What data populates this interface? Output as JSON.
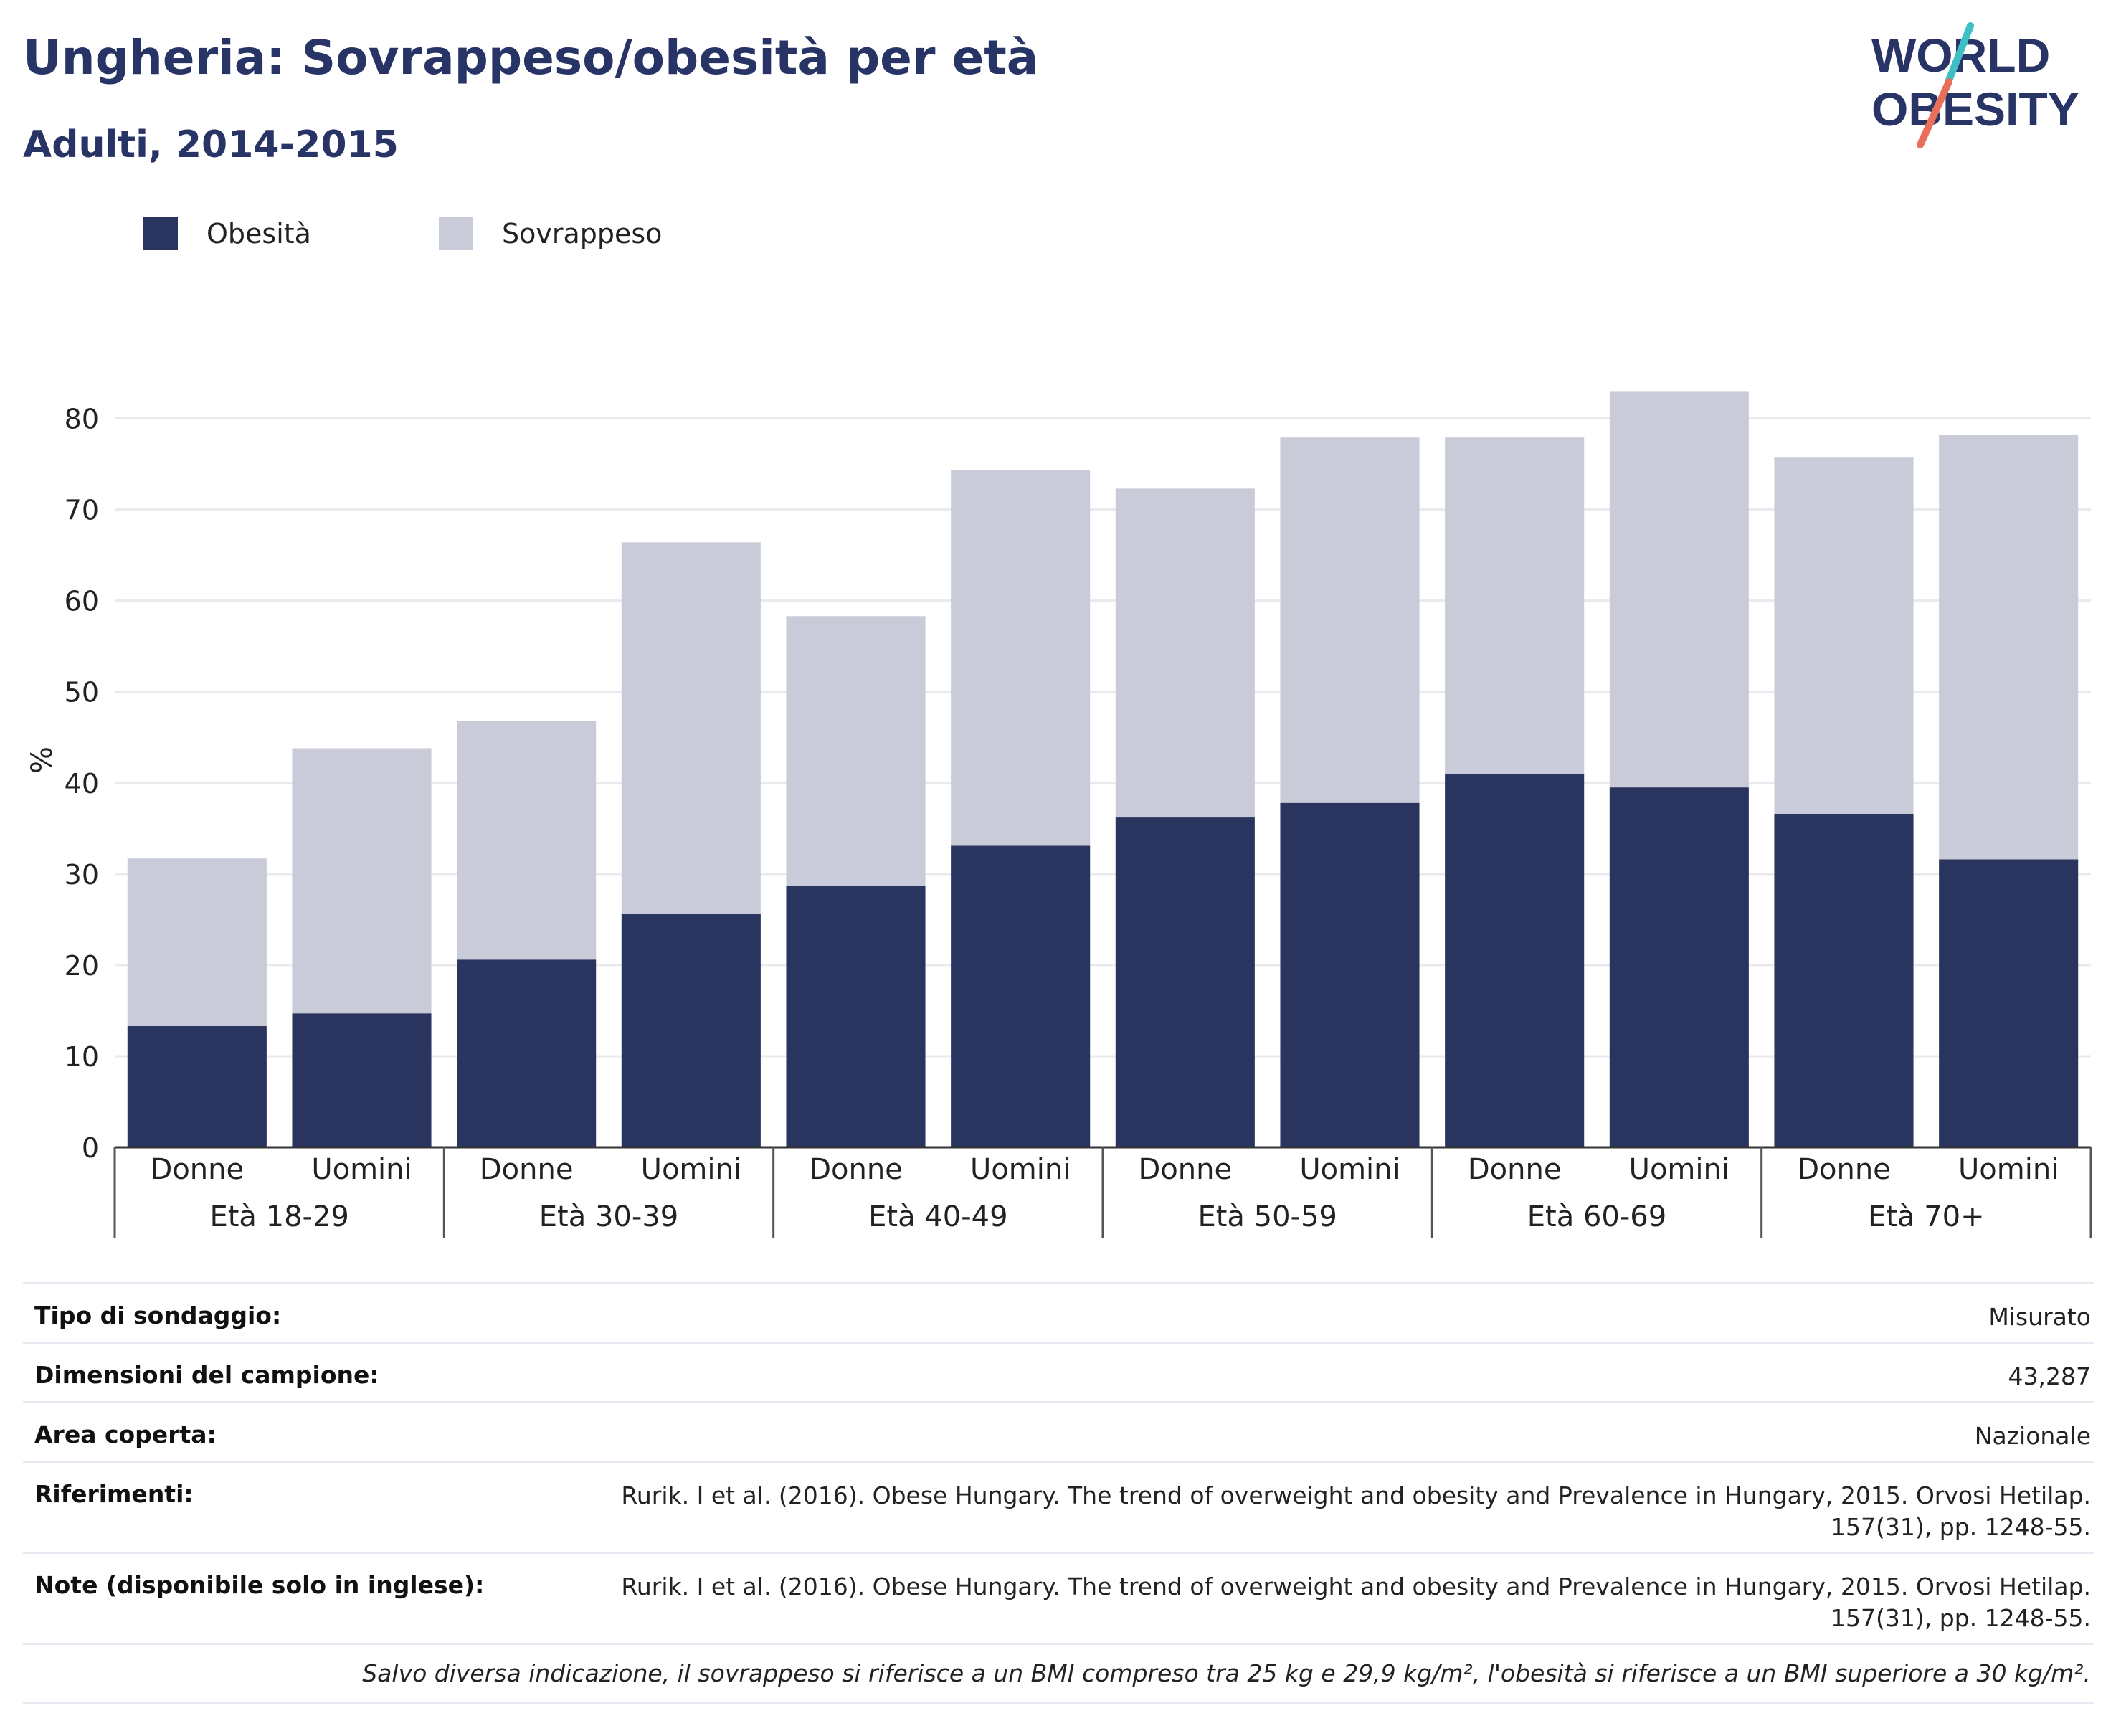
{
  "header": {
    "title": "Ungheria: Sovrappeso/obesità per età",
    "subtitle": "Adulti, 2014-2015"
  },
  "logo": {
    "line1": "WORLD",
    "line2": "OBESITY",
    "colors": [
      "#273465",
      "#e8705a",
      "#3dbfc4"
    ]
  },
  "legend": [
    {
      "label": "Obesità",
      "color": "#29345f"
    },
    {
      "label": "Sovrappeso",
      "color": "#cacbd8"
    }
  ],
  "chart_data": {
    "type": "bar",
    "stacked": true,
    "ylabel": "%",
    "ylim": [
      0,
      85
    ],
    "yticks": [
      0,
      10,
      20,
      30,
      40,
      50,
      60,
      70,
      80
    ],
    "grid": true,
    "legend_position": "top-left",
    "groups": [
      {
        "label": "Età 18-29",
        "categories": [
          "Donne",
          "Uomini"
        ]
      },
      {
        "label": "Età 30-39",
        "categories": [
          "Donne",
          "Uomini"
        ]
      },
      {
        "label": "Età 40-49",
        "categories": [
          "Donne",
          "Uomini"
        ]
      },
      {
        "label": "Età 50-59",
        "categories": [
          "Donne",
          "Uomini"
        ]
      },
      {
        "label": "Età 60-69",
        "categories": [
          "Donne",
          "Uomini"
        ]
      },
      {
        "label": "Età 70+",
        "categories": [
          "Donne",
          "Uomini"
        ]
      }
    ],
    "categories": [
      "Donne",
      "Uomini",
      "Donne",
      "Uomini",
      "Donne",
      "Uomini",
      "Donne",
      "Uomini",
      "Donne",
      "Uomini",
      "Donne",
      "Uomini"
    ],
    "series": [
      {
        "name": "Obesità",
        "color": "#29345f",
        "values": [
          13.3,
          14.7,
          20.6,
          25.6,
          28.7,
          33.1,
          36.2,
          37.8,
          41.0,
          39.5,
          36.6,
          31.6
        ]
      },
      {
        "name": "Sovrappeso",
        "color": "#cacbd8",
        "values": [
          18.4,
          29.1,
          26.2,
          40.8,
          29.6,
          41.2,
          36.1,
          40.1,
          36.9,
          43.5,
          39.1,
          46.6
        ]
      }
    ]
  },
  "details": [
    {
      "key": "Tipo di sondaggio:",
      "value": "Misurato"
    },
    {
      "key": "Dimensioni del campione:",
      "value": "43,287"
    },
    {
      "key": "Area coperta:",
      "value": "Nazionale"
    },
    {
      "key": "Riferimenti:",
      "value": "Rurik. I et al. (2016). Obese Hungary. The trend of overweight and obesity and Prevalence in Hungary, 2015. Orvosi Hetilap. 157(31), pp. 1248-55."
    },
    {
      "key": "Note (disponibile solo in inglese):",
      "value": "Rurik. I et al. (2016). Obese Hungary. The trend of overweight and obesity and Prevalence in Hungary, 2015. Orvosi Hetilap. 157(31), pp. 1248-55."
    }
  ],
  "footnote": "Salvo diversa indicazione, il sovrappeso si riferisce a un BMI compreso tra 25 kg e 29,9 kg/m², l'obesità si riferisce a un BMI superiore a 30 kg/m²."
}
